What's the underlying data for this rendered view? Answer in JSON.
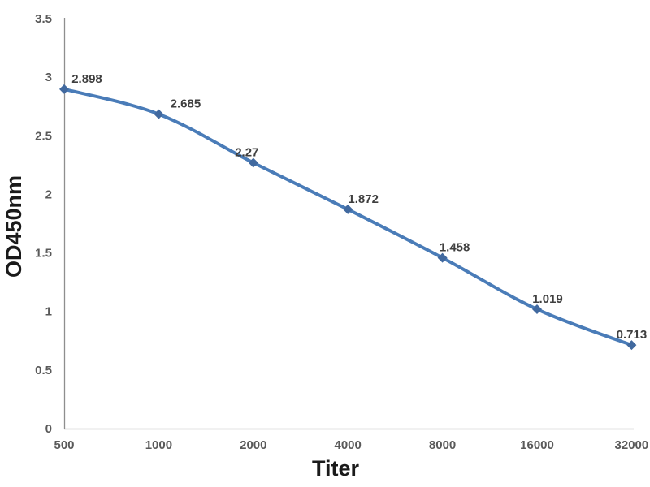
{
  "chart_data": {
    "type": "line",
    "title": "",
    "xlabel": "Titer",
    "ylabel": "OD450nm",
    "categories": [
      "500",
      "1000",
      "2000",
      "4000",
      "8000",
      "16000",
      "32000"
    ],
    "x_values": [
      500,
      1000,
      2000,
      4000,
      8000,
      16000,
      32000
    ],
    "series": [
      {
        "name": "OD450nm",
        "values": [
          2.898,
          2.685,
          2.27,
          1.872,
          1.458,
          1.019,
          0.713
        ],
        "point_labels": [
          "2.898",
          "2.685",
          "2.27",
          "1.872",
          "1.458",
          "1.019",
          "0.713"
        ]
      }
    ],
    "ylim": [
      0,
      3.5
    ],
    "ytick_labels": [
      "0",
      "0.5",
      "1",
      "1.5",
      "2",
      "2.5",
      "3",
      "3.5"
    ],
    "grid": false,
    "legend_position": "none",
    "line_smooth": true,
    "marker_shape": "diamond",
    "colors": {
      "line": "#4a7cb8",
      "marker": "#41699f",
      "axis": "#8e8e8e",
      "tick_label": "#595959",
      "data_label": "#3f3f3f",
      "axis_title": "#1a1a1a",
      "background": "#ffffff"
    }
  }
}
